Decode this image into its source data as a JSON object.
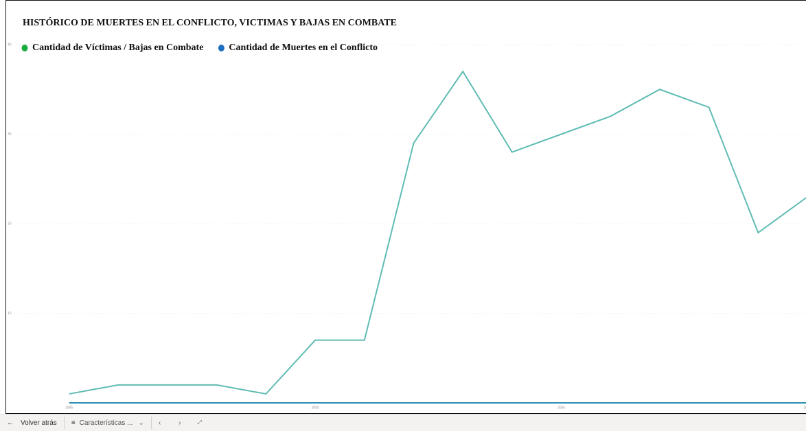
{
  "chart_data": {
    "type": "line",
    "title": "HISTÓRICO DE MUERTES EN EL CONFLICTO, VICTIMAS Y BAJAS EN COMBATE",
    "x": [
      1995,
      1996,
      1997,
      1998,
      1999,
      2000,
      2001,
      2002,
      2003,
      2004,
      2005,
      2006,
      2007,
      2008,
      2009,
      2010
    ],
    "series": [
      {
        "name": "Cantidad de Víctimas / Bajas en Combate",
        "color": "#1aab40",
        "line_color": "#5fbcb3",
        "values": [
          1,
          2,
          2,
          2,
          1,
          7,
          7,
          29,
          37,
          28,
          30,
          32,
          35,
          33,
          19,
          23
        ]
      },
      {
        "name": "Cantidad de Muertes en el Conflicto",
        "color": "#1f6fbf",
        "line_color": "#2a8fb0",
        "values": [
          0,
          0,
          0,
          0,
          0,
          0,
          0,
          0,
          0,
          0,
          0,
          0,
          0,
          0,
          0,
          0
        ]
      }
    ],
    "xlim": [
      1994,
      2010
    ],
    "xticks": [
      1995,
      2000,
      2005,
      2010
    ],
    "ylim": [
      0,
      40
    ],
    "yticks": [
      10,
      20,
      30,
      40
    ],
    "grid": true
  },
  "toolbar": {
    "back": "Volver atrás",
    "page": "Características ..."
  }
}
